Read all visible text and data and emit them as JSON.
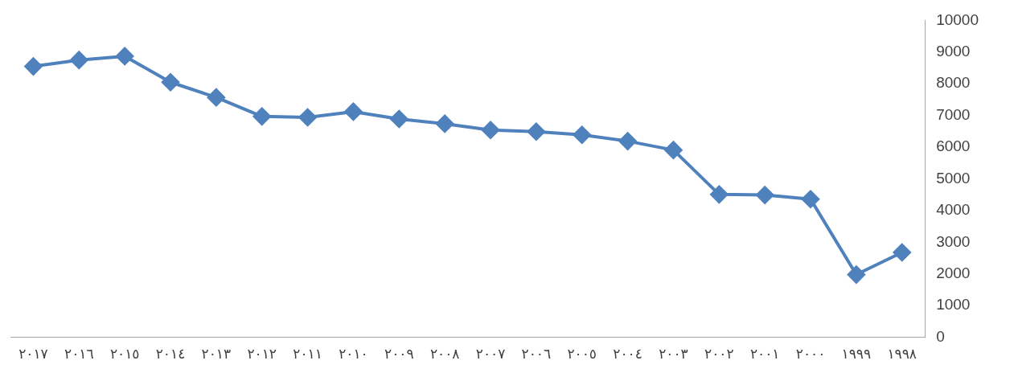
{
  "chart_data": {
    "type": "line",
    "categories": [
      "٢٠١٧",
      "٢٠١٦",
      "٢٠١٥",
      "٢٠١٤",
      "٢٠١٣",
      "٢٠١٢",
      "٢٠١١",
      "٢٠١٠",
      "٢٠٠٩",
      "٢٠٠٨",
      "٢٠٠٧",
      "٢٠٠٦",
      "٢٠٠٥",
      "٢٠٠٤",
      "٢٠٠٣",
      "٢٠٠٢",
      "٢٠٠١",
      "٢٠٠٠",
      "١٩٩٩",
      "١٩٩٨"
    ],
    "series": [
      {
        "color": "#4f81bd",
        "values": [
          8550,
          8750,
          8870,
          8050,
          7570,
          6970,
          6940,
          7120,
          6890,
          6740,
          6540,
          6490,
          6390,
          6190,
          5910,
          4510,
          4490,
          4360,
          1980,
          2680
        ]
      }
    ],
    "ylim": [
      0,
      10000
    ],
    "yticks": [
      0,
      1000,
      2000,
      3000,
      4000,
      5000,
      6000,
      7000,
      8000,
      9000,
      10000
    ],
    "grid": false,
    "legend": false,
    "marker": "diamond",
    "line_style": "solid"
  }
}
